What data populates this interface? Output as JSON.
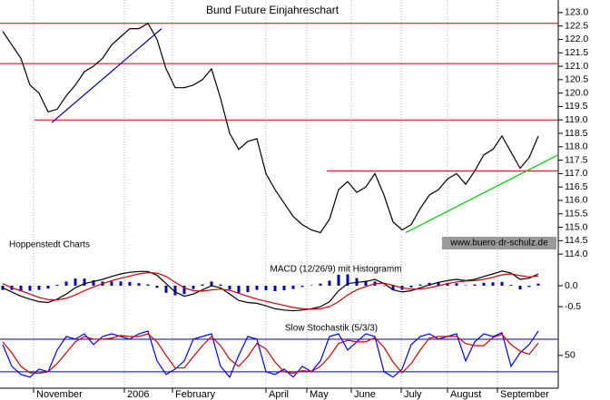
{
  "chart_data": [
    {
      "type": "line",
      "title": "Bund Future Einjahreschart",
      "source": "Hoppenstedt Charts",
      "watermark": "www.buero-dr-schulz.de",
      "color": "#000000",
      "values": [
        122.3,
        121.8,
        121.3,
        120.3,
        120.0,
        119.3,
        119.4,
        119.9,
        120.3,
        120.8,
        121.0,
        121.3,
        121.8,
        122.1,
        122.4,
        122.4,
        122.6,
        122.0,
        120.9,
        120.2,
        120.2,
        120.3,
        120.5,
        120.9,
        119.8,
        118.5,
        117.9,
        118.2,
        118.3,
        117.0,
        116.4,
        115.9,
        115.4,
        115.1,
        114.9,
        114.8,
        115.3,
        116.4,
        116.7,
        116.3,
        116.5,
        117.0,
        116.2,
        115.2,
        114.9,
        115.1,
        115.7,
        116.2,
        116.4,
        116.8,
        117.0,
        116.6,
        117.1,
        117.7,
        117.9,
        118.4,
        117.8,
        117.2,
        117.6,
        118.4
      ],
      "xlim": [
        -0.3,
        61.2
      ],
      "xticks": [
        {
          "value": 3.4,
          "label": "November"
        },
        {
          "value": 13.4,
          "label": "2006"
        },
        {
          "value": 18.7,
          "label": "February"
        },
        {
          "value": 29.0,
          "label": "April"
        },
        {
          "value": 33.5,
          "label": "May"
        },
        {
          "value": 38.4,
          "label": "June"
        },
        {
          "value": 43.9,
          "label": "July"
        },
        {
          "value": 49.0,
          "label": "August"
        },
        {
          "value": 54.5,
          "label": "September"
        }
      ],
      "ylim": [
        113.7,
        123.3
      ],
      "yticks": [
        {
          "value": 114,
          "label": "114.0"
        },
        114.5,
        {
          "value": 115,
          "label": "115.0"
        },
        115.5,
        {
          "value": 116,
          "label": "116.0"
        },
        116.5,
        {
          "value": 117,
          "label": "117.0"
        },
        117.5,
        {
          "value": 118,
          "label": "118.0"
        },
        118.5,
        {
          "value": 119,
          "label": "119.0"
        },
        119.5,
        {
          "value": 120,
          "label": "120.0"
        },
        120.5,
        {
          "value": 121,
          "label": "121.0"
        },
        121.5,
        {
          "value": 122,
          "label": "122.0"
        },
        122.5,
        {
          "value": 123,
          "label": "123.0"
        }
      ],
      "levels": [
        {
          "y": 122.6,
          "x_from": -0.3,
          "color": "#d00000"
        },
        {
          "y": 121.1,
          "x_from": -0.3,
          "color": "#d00000"
        },
        {
          "y": 119.0,
          "x_from": 3.5,
          "color": "#d00000"
        },
        {
          "y": 117.1,
          "x_from": 35.7,
          "color": "#d00000"
        }
      ],
      "trendlines": [
        {
          "x1": 5.4,
          "y1": 118.9,
          "x2": 17.5,
          "y2": 122.4,
          "color": "#0000a0"
        },
        {
          "x1": 44.4,
          "y1": 114.8,
          "x2": 61.2,
          "y2": 117.7,
          "color": "#00cc00"
        }
      ]
    },
    {
      "type": "line",
      "title": "MACD (12/26/9) mit Histogramm",
      "series": [
        {
          "type": "bar",
          "color": "#0000c0",
          "values": [
            -0.1,
            -0.1,
            -0.13,
            -0.12,
            -0.1,
            -0.07,
            0.02,
            0.1,
            0.17,
            0.17,
            0.13,
            0.1,
            0.1,
            0.1,
            0.09,
            0.06,
            0.03,
            -0.05,
            -0.17,
            -0.23,
            -0.2,
            -0.08,
            0.03,
            0.1,
            0.03,
            -0.09,
            -0.17,
            -0.15,
            -0.1,
            -0.11,
            -0.13,
            -0.11,
            -0.08,
            -0.03,
            0.01,
            0.05,
            0.12,
            0.26,
            0.27,
            0.18,
            0.12,
            0.1,
            -0.01,
            -0.11,
            -0.1,
            -0.04,
            0.03,
            0.07,
            0.08,
            0.07,
            0.06,
            0.01,
            0.03,
            0.07,
            0.08,
            0.09,
            0.02,
            -0.09,
            -0.03,
            0.05
          ]
        },
        {
          "type": "line",
          "color": "#000000",
          "values": [
            -0.05,
            -0.15,
            -0.25,
            -0.32,
            -0.38,
            -0.4,
            -0.32,
            -0.2,
            -0.05,
            0.05,
            0.1,
            0.15,
            0.22,
            0.28,
            0.32,
            0.34,
            0.34,
            0.25,
            0.05,
            -0.15,
            -0.25,
            -0.2,
            -0.1,
            0.0,
            -0.05,
            -0.2,
            -0.35,
            -0.4,
            -0.42,
            -0.48,
            -0.55,
            -0.58,
            -0.6,
            -0.58,
            -0.55,
            -0.5,
            -0.38,
            -0.12,
            0.05,
            0.08,
            0.1,
            0.15,
            0.05,
            -0.1,
            -0.15,
            -0.12,
            -0.05,
            0.02,
            0.08,
            0.12,
            0.15,
            0.12,
            0.15,
            0.22,
            0.28,
            0.35,
            0.3,
            0.15,
            0.18,
            0.28
          ]
        },
        {
          "type": "line",
          "color": "#d00000",
          "values": [
            0.05,
            -0.05,
            -0.12,
            -0.2,
            -0.28,
            -0.33,
            -0.34,
            -0.3,
            -0.22,
            -0.12,
            -0.03,
            0.05,
            0.12,
            0.18,
            0.23,
            0.28,
            0.31,
            0.3,
            0.22,
            0.08,
            -0.05,
            -0.12,
            -0.13,
            -0.1,
            -0.08,
            -0.11,
            -0.18,
            -0.25,
            -0.32,
            -0.37,
            -0.42,
            -0.47,
            -0.52,
            -0.55,
            -0.56,
            -0.55,
            -0.5,
            -0.38,
            -0.22,
            -0.1,
            -0.02,
            0.05,
            0.06,
            0.01,
            -0.05,
            -0.08,
            -0.08,
            -0.05,
            0.0,
            0.05,
            0.09,
            0.11,
            0.12,
            0.15,
            0.2,
            0.26,
            0.28,
            0.24,
            0.21,
            0.23
          ]
        }
      ],
      "ylim": [
        -0.8,
        0.54
      ],
      "yticks": [
        -0.5,
        {
          "value": 0,
          "label": "0.0"
        }
      ]
    },
    {
      "type": "line",
      "title": "Slow Stochastik (5/3/3)",
      "series": [
        {
          "type": "line",
          "color": "#0000ff",
          "values": [
            70,
            30,
            15,
            10,
            25,
            20,
            60,
            85,
            80,
            90,
            70,
            85,
            90,
            85,
            80,
            90,
            95,
            40,
            15,
            25,
            40,
            80,
            85,
            90,
            30,
            10,
            50,
            85,
            80,
            20,
            15,
            25,
            10,
            30,
            20,
            40,
            85,
            90,
            60,
            75,
            90,
            85,
            20,
            10,
            25,
            70,
            85,
            90,
            80,
            85,
            90,
            40,
            75,
            90,
            85,
            92,
            30,
            55,
            70,
            95
          ]
        },
        {
          "type": "line",
          "color": "#d00000",
          "values": [
            75,
            55,
            30,
            18,
            17,
            20,
            35,
            55,
            75,
            85,
            80,
            80,
            82,
            87,
            85,
            85,
            90,
            75,
            50,
            27,
            27,
            48,
            68,
            85,
            68,
            43,
            30,
            48,
            72,
            62,
            38,
            20,
            17,
            22,
            20,
            30,
            48,
            72,
            78,
            75,
            75,
            83,
            65,
            38,
            18,
            35,
            60,
            82,
            85,
            85,
            85,
            72,
            68,
            68,
            83,
            89,
            70,
            58,
            52,
            73
          ]
        }
      ],
      "ylim": [
        -7,
        110
      ],
      "yticks": [
        50
      ],
      "levels": [
        {
          "y": 80,
          "x_from": -0.3,
          "color": "#0000c0"
        },
        {
          "y": 20,
          "x_from": -0.3,
          "color": "#0000c0"
        }
      ]
    }
  ]
}
